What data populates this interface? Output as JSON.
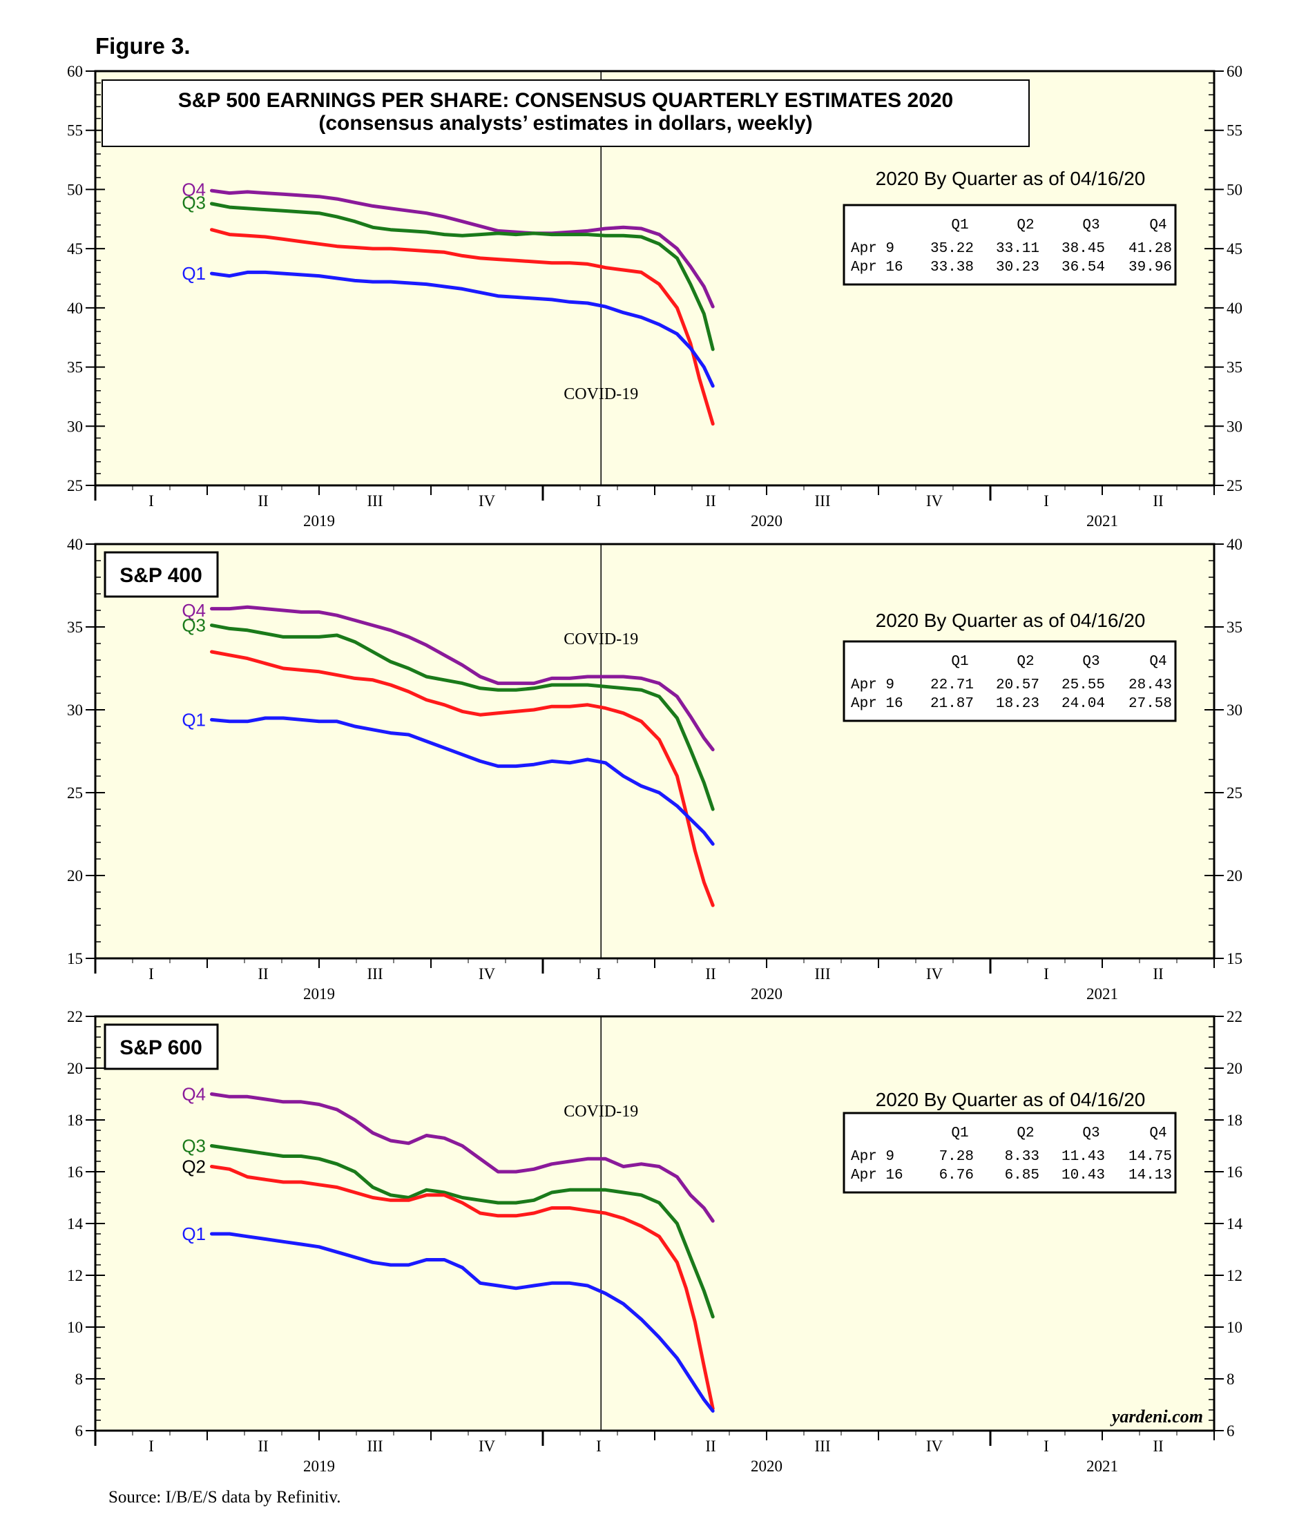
{
  "figure_label": "Figure 3.",
  "source_note": "Source: I/B/E/S data by Refinitiv.",
  "watermark": "yardeni.com",
  "colors": {
    "Q1": "#1a1aff",
    "Q2": "#ff1a1a",
    "Q3": "#1a7a1a",
    "Q4": "#8a1a9a",
    "plot_bg": "#fefee4"
  },
  "chart_data": [
    {
      "type": "line",
      "title": "S&P 500 EARNINGS PER SHARE: CONSENSUS QUARTERLY ESTIMATES 2020",
      "subtitle": "(consensus analysts’ estimates in dollars, weekly)",
      "ylim": [
        25,
        60
      ],
      "yticks": [
        25,
        30,
        35,
        40,
        45,
        50,
        55,
        60
      ],
      "xlim": [
        2019.0,
        2021.5
      ],
      "quarter_labels": [
        "I",
        "II",
        "III",
        "IV",
        "I",
        "II",
        "III",
        "IV",
        "I",
        "II"
      ],
      "year_labels": [
        "2019",
        "2020",
        "2021"
      ],
      "annotation": "COVID-19",
      "event_x": 2020.13,
      "table": {
        "heading": "2020 By Quarter as of 04/16/20",
        "columns": [
          "Q1",
          "Q2",
          "Q3",
          "Q4"
        ],
        "rows": [
          {
            "label": "Apr  9",
            "values": [
              "35.22",
              "33.11",
              "38.45",
              "41.28"
            ]
          },
          {
            "label": "Apr 16",
            "values": [
              "33.38",
              "30.23",
              "36.54",
              "39.96"
            ]
          }
        ]
      },
      "series": [
        {
          "name": "Q4",
          "label": "Q4",
          "label_y": 50.0,
          "x": [
            2019.26,
            2019.3,
            2019.34,
            2019.38,
            2019.42,
            2019.46,
            2019.5,
            2019.54,
            2019.58,
            2019.62,
            2019.66,
            2019.7,
            2019.74,
            2019.78,
            2019.82,
            2019.86,
            2019.9,
            2019.94,
            2019.98,
            2020.02,
            2020.06,
            2020.1,
            2020.14,
            2020.18,
            2020.22,
            2020.26,
            2020.3,
            2020.33,
            2020.36,
            2020.38
          ],
          "y": [
            49.9,
            49.7,
            49.8,
            49.7,
            49.6,
            49.5,
            49.4,
            49.2,
            48.9,
            48.6,
            48.4,
            48.2,
            48.0,
            47.7,
            47.3,
            46.9,
            46.5,
            46.4,
            46.3,
            46.3,
            46.4,
            46.5,
            46.7,
            46.8,
            46.7,
            46.2,
            45.0,
            43.5,
            41.8,
            40.1
          ]
        },
        {
          "name": "Q3",
          "label": "Q3",
          "label_y": 48.9,
          "x": [
            2019.26,
            2019.3,
            2019.34,
            2019.38,
            2019.42,
            2019.46,
            2019.5,
            2019.54,
            2019.58,
            2019.62,
            2019.66,
            2019.7,
            2019.74,
            2019.78,
            2019.82,
            2019.86,
            2019.9,
            2019.94,
            2019.98,
            2020.02,
            2020.06,
            2020.1,
            2020.14,
            2020.18,
            2020.22,
            2020.26,
            2020.3,
            2020.33,
            2020.36,
            2020.38
          ],
          "y": [
            48.8,
            48.5,
            48.4,
            48.3,
            48.2,
            48.1,
            48.0,
            47.7,
            47.3,
            46.8,
            46.6,
            46.5,
            46.4,
            46.2,
            46.1,
            46.2,
            46.3,
            46.2,
            46.3,
            46.2,
            46.2,
            46.2,
            46.1,
            46.1,
            46.0,
            45.4,
            44.2,
            42.0,
            39.5,
            36.5
          ]
        },
        {
          "name": "Q2",
          "label": "",
          "label_y": 46.6,
          "x": [
            2019.26,
            2019.3,
            2019.34,
            2019.38,
            2019.42,
            2019.46,
            2019.5,
            2019.54,
            2019.58,
            2019.62,
            2019.66,
            2019.7,
            2019.74,
            2019.78,
            2019.82,
            2019.86,
            2019.9,
            2019.94,
            2019.98,
            2020.02,
            2020.06,
            2020.1,
            2020.14,
            2020.18,
            2020.22,
            2020.26,
            2020.3,
            2020.33,
            2020.35,
            2020.38
          ],
          "y": [
            46.6,
            46.2,
            46.1,
            46.0,
            45.8,
            45.6,
            45.4,
            45.2,
            45.1,
            45.0,
            45.0,
            44.9,
            44.8,
            44.7,
            44.4,
            44.2,
            44.1,
            44.0,
            43.9,
            43.8,
            43.8,
            43.7,
            43.4,
            43.2,
            43.0,
            42.0,
            40.0,
            37.0,
            34.0,
            30.2
          ]
        },
        {
          "name": "Q1",
          "label": "Q1",
          "label_y": 42.9,
          "x": [
            2019.26,
            2019.3,
            2019.34,
            2019.38,
            2019.42,
            2019.46,
            2019.5,
            2019.54,
            2019.58,
            2019.62,
            2019.66,
            2019.7,
            2019.74,
            2019.78,
            2019.82,
            2019.86,
            2019.9,
            2019.94,
            2019.98,
            2020.02,
            2020.06,
            2020.1,
            2020.14,
            2020.18,
            2020.22,
            2020.26,
            2020.3,
            2020.33,
            2020.36,
            2020.38
          ],
          "y": [
            42.9,
            42.7,
            43.0,
            43.0,
            42.9,
            42.8,
            42.7,
            42.5,
            42.3,
            42.2,
            42.2,
            42.1,
            42.0,
            41.8,
            41.6,
            41.3,
            41.0,
            40.9,
            40.8,
            40.7,
            40.5,
            40.4,
            40.1,
            39.6,
            39.2,
            38.6,
            37.8,
            36.6,
            35.0,
            33.4
          ]
        }
      ]
    },
    {
      "type": "line",
      "title": "S&P 400",
      "ylim": [
        15,
        40
      ],
      "yticks": [
        15,
        20,
        25,
        30,
        35,
        40
      ],
      "xlim": [
        2019.0,
        2021.5
      ],
      "quarter_labels": [
        "I",
        "II",
        "III",
        "IV",
        "I",
        "II",
        "III",
        "IV",
        "I",
        "II"
      ],
      "year_labels": [
        "2019",
        "2020",
        "2021"
      ],
      "annotation": "COVID-19",
      "event_x": 2020.13,
      "table": {
        "heading": "2020 By Quarter as of 04/16/20",
        "columns": [
          "Q1",
          "Q2",
          "Q3",
          "Q4"
        ],
        "rows": [
          {
            "label": "Apr  9",
            "values": [
              "22.71",
              "20.57",
              "25.55",
              "28.43"
            ]
          },
          {
            "label": "Apr 16",
            "values": [
              "21.87",
              "18.23",
              "24.04",
              "27.58"
            ]
          }
        ]
      },
      "series": [
        {
          "name": "Q4",
          "label": "Q4",
          "label_y": 36.0,
          "x": [
            2019.26,
            2019.3,
            2019.34,
            2019.38,
            2019.42,
            2019.46,
            2019.5,
            2019.54,
            2019.58,
            2019.62,
            2019.66,
            2019.7,
            2019.74,
            2019.78,
            2019.82,
            2019.86,
            2019.9,
            2019.94,
            2019.98,
            2020.02,
            2020.06,
            2020.1,
            2020.14,
            2020.18,
            2020.22,
            2020.26,
            2020.3,
            2020.33,
            2020.36,
            2020.38
          ],
          "y": [
            36.1,
            36.1,
            36.2,
            36.1,
            36.0,
            35.9,
            35.9,
            35.7,
            35.4,
            35.1,
            34.8,
            34.4,
            33.9,
            33.3,
            32.7,
            32.0,
            31.6,
            31.6,
            31.6,
            31.9,
            31.9,
            32.0,
            32.0,
            32.0,
            31.9,
            31.6,
            30.8,
            29.6,
            28.3,
            27.6
          ]
        },
        {
          "name": "Q3",
          "label": "Q3",
          "label_y": 35.1,
          "x": [
            2019.26,
            2019.3,
            2019.34,
            2019.38,
            2019.42,
            2019.46,
            2019.5,
            2019.54,
            2019.58,
            2019.62,
            2019.66,
            2019.7,
            2019.74,
            2019.78,
            2019.82,
            2019.86,
            2019.9,
            2019.94,
            2019.98,
            2020.02,
            2020.06,
            2020.1,
            2020.14,
            2020.18,
            2020.22,
            2020.26,
            2020.3,
            2020.33,
            2020.36,
            2020.38
          ],
          "y": [
            35.1,
            34.9,
            34.8,
            34.6,
            34.4,
            34.4,
            34.4,
            34.5,
            34.1,
            33.5,
            32.9,
            32.5,
            32.0,
            31.8,
            31.6,
            31.3,
            31.2,
            31.2,
            31.3,
            31.5,
            31.5,
            31.5,
            31.4,
            31.3,
            31.2,
            30.8,
            29.5,
            27.6,
            25.6,
            24.0
          ]
        },
        {
          "name": "Q2",
          "label": "",
          "label_y": 33.5,
          "x": [
            2019.26,
            2019.3,
            2019.34,
            2019.38,
            2019.42,
            2019.46,
            2019.5,
            2019.54,
            2019.58,
            2019.62,
            2019.66,
            2019.7,
            2019.74,
            2019.78,
            2019.82,
            2019.86,
            2019.9,
            2019.94,
            2019.98,
            2020.02,
            2020.06,
            2020.1,
            2020.14,
            2020.18,
            2020.22,
            2020.26,
            2020.3,
            2020.32,
            2020.34,
            2020.36,
            2020.38
          ],
          "y": [
            33.5,
            33.3,
            33.1,
            32.8,
            32.5,
            32.4,
            32.3,
            32.1,
            31.9,
            31.8,
            31.5,
            31.1,
            30.6,
            30.3,
            29.9,
            29.7,
            29.8,
            29.9,
            30.0,
            30.2,
            30.2,
            30.3,
            30.1,
            29.8,
            29.3,
            28.2,
            26.0,
            23.8,
            21.5,
            19.6,
            18.2
          ]
        },
        {
          "name": "Q1",
          "label": "Q1",
          "label_y": 29.4,
          "x": [
            2019.26,
            2019.3,
            2019.34,
            2019.38,
            2019.42,
            2019.46,
            2019.5,
            2019.54,
            2019.58,
            2019.62,
            2019.66,
            2019.7,
            2019.74,
            2019.78,
            2019.82,
            2019.86,
            2019.9,
            2019.94,
            2019.98,
            2020.02,
            2020.06,
            2020.1,
            2020.14,
            2020.18,
            2020.22,
            2020.26,
            2020.3,
            2020.33,
            2020.36,
            2020.38
          ],
          "y": [
            29.4,
            29.3,
            29.3,
            29.5,
            29.5,
            29.4,
            29.3,
            29.3,
            29.0,
            28.8,
            28.6,
            28.5,
            28.1,
            27.7,
            27.3,
            26.9,
            26.6,
            26.6,
            26.7,
            26.9,
            26.8,
            27.0,
            26.8,
            26.0,
            25.4,
            25.0,
            24.2,
            23.4,
            22.6,
            21.9
          ]
        }
      ]
    },
    {
      "type": "line",
      "title": "S&P 600",
      "ylim": [
        6,
        22
      ],
      "yticks": [
        6,
        8,
        10,
        12,
        14,
        16,
        18,
        20,
        22
      ],
      "xlim": [
        2019.0,
        2021.5
      ],
      "quarter_labels": [
        "I",
        "II",
        "III",
        "IV",
        "I",
        "II",
        "III",
        "IV",
        "I",
        "II"
      ],
      "year_labels": [
        "2019",
        "2020",
        "2021"
      ],
      "annotation": "COVID-19",
      "event_x": 2020.13,
      "table": {
        "heading": "2020 By Quarter as of 04/16/20",
        "columns": [
          "Q1",
          "Q2",
          "Q3",
          "Q4"
        ],
        "rows": [
          {
            "label": "Apr  9",
            "values": [
              "7.28",
              "8.33",
              "11.43",
              "14.75"
            ]
          },
          {
            "label": "Apr 16",
            "values": [
              "6.76",
              "6.85",
              "10.43",
              "14.13"
            ]
          }
        ]
      },
      "series": [
        {
          "name": "Q4",
          "label": "Q4",
          "label_y": 19.0,
          "x": [
            2019.26,
            2019.3,
            2019.34,
            2019.38,
            2019.42,
            2019.46,
            2019.5,
            2019.54,
            2019.58,
            2019.62,
            2019.66,
            2019.7,
            2019.74,
            2019.78,
            2019.82,
            2019.86,
            2019.9,
            2019.94,
            2019.98,
            2020.02,
            2020.06,
            2020.1,
            2020.14,
            2020.18,
            2020.22,
            2020.26,
            2020.3,
            2020.33,
            2020.36,
            2020.38
          ],
          "y": [
            19.0,
            18.9,
            18.9,
            18.8,
            18.7,
            18.7,
            18.6,
            18.4,
            18.0,
            17.5,
            17.2,
            17.1,
            17.4,
            17.3,
            17.0,
            16.5,
            16.0,
            16.0,
            16.1,
            16.3,
            16.4,
            16.5,
            16.5,
            16.2,
            16.3,
            16.2,
            15.8,
            15.1,
            14.6,
            14.1
          ]
        },
        {
          "name": "Q3",
          "label": "Q3",
          "label_y": 17.0,
          "x": [
            2019.26,
            2019.3,
            2019.34,
            2019.38,
            2019.42,
            2019.46,
            2019.5,
            2019.54,
            2019.58,
            2019.62,
            2019.66,
            2019.7,
            2019.74,
            2019.78,
            2019.82,
            2019.86,
            2019.9,
            2019.94,
            2019.98,
            2020.02,
            2020.06,
            2020.1,
            2020.14,
            2020.18,
            2020.22,
            2020.26,
            2020.3,
            2020.33,
            2020.36,
            2020.38
          ],
          "y": [
            17.0,
            16.9,
            16.8,
            16.7,
            16.6,
            16.6,
            16.5,
            16.3,
            16.0,
            15.4,
            15.1,
            15.0,
            15.3,
            15.2,
            15.0,
            14.9,
            14.8,
            14.8,
            14.9,
            15.2,
            15.3,
            15.3,
            15.3,
            15.2,
            15.1,
            14.8,
            14.0,
            12.7,
            11.4,
            10.4
          ]
        },
        {
          "name": "Q2",
          "label": "Q2",
          "label_y": 16.2,
          "x": [
            2019.26,
            2019.3,
            2019.34,
            2019.38,
            2019.42,
            2019.46,
            2019.5,
            2019.54,
            2019.58,
            2019.62,
            2019.66,
            2019.7,
            2019.74,
            2019.78,
            2019.82,
            2019.86,
            2019.9,
            2019.94,
            2019.98,
            2020.02,
            2020.06,
            2020.1,
            2020.14,
            2020.18,
            2020.22,
            2020.26,
            2020.3,
            2020.32,
            2020.34,
            2020.36,
            2020.38
          ],
          "y": [
            16.2,
            16.1,
            15.8,
            15.7,
            15.6,
            15.6,
            15.5,
            15.4,
            15.2,
            15.0,
            14.9,
            14.9,
            15.1,
            15.1,
            14.8,
            14.4,
            14.3,
            14.3,
            14.4,
            14.6,
            14.6,
            14.5,
            14.4,
            14.2,
            13.9,
            13.5,
            12.5,
            11.5,
            10.2,
            8.5,
            6.85
          ]
        },
        {
          "name": "Q1",
          "label": "Q1",
          "label_y": 13.6,
          "x": [
            2019.26,
            2019.3,
            2019.34,
            2019.38,
            2019.42,
            2019.46,
            2019.5,
            2019.54,
            2019.58,
            2019.62,
            2019.66,
            2019.7,
            2019.74,
            2019.78,
            2019.82,
            2019.86,
            2019.9,
            2019.94,
            2019.98,
            2020.02,
            2020.06,
            2020.1,
            2020.14,
            2020.18,
            2020.22,
            2020.26,
            2020.3,
            2020.33,
            2020.36,
            2020.38
          ],
          "y": [
            13.6,
            13.6,
            13.5,
            13.4,
            13.3,
            13.2,
            13.1,
            12.9,
            12.7,
            12.5,
            12.4,
            12.4,
            12.6,
            12.6,
            12.3,
            11.7,
            11.6,
            11.5,
            11.6,
            11.7,
            11.7,
            11.6,
            11.3,
            10.9,
            10.3,
            9.6,
            8.8,
            8.0,
            7.2,
            6.76
          ]
        }
      ]
    }
  ]
}
